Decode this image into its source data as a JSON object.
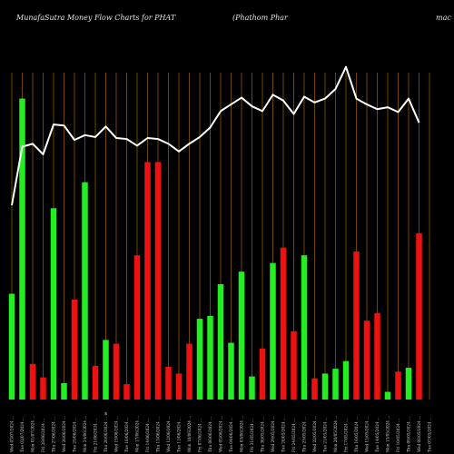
{
  "header": {
    "title_left": "MunafaSutra  Money Flow  Charts for PHAT",
    "title_right": "(Phathom Phar",
    "title_right_tail": "mac"
  },
  "chart_data": {
    "type": "bar",
    "note_symbol": "$",
    "colors": {
      "up": "#22ee22",
      "down": "#ee1111",
      "line": "#ffffff",
      "grid": "#8a5a00",
      "background": "#000000"
    },
    "categories": [
      "Wed 03/07/2024 ...",
      "Tue 02/07/2024 ...",
      "Mon 01/07/2024 ...",
      "Fri 28/06/2024 ...",
      "Thu 27/06/2024 ...",
      "Wed 26/06/2024 ...",
      "Tue 25/06/2024 ...",
      "Mon 24/06/2024 ...",
      "Fri 21/06/2024 ...",
      "Thu 20/06/2024 ...",
      "Wed 19/06/2024 ...",
      "Tue 18/06/2024 ...",
      "Mon 17/06/2024 ...",
      "Fri 14/06/2024 ...",
      "Thu 13/06/2024 ...",
      "Wed 12/06/2024 ...",
      "Tue 11/06/2024 ...",
      "Mon 10/06/2024 ...",
      "Fri 07/06/2024 ...",
      "Thu 06/06/2024 ...",
      "Wed 05/06/2024 ...",
      "Tue 04/06/2024 ...",
      "Mon 03/06/2024 ...",
      "Fri 31/05/2024 ...",
      "Thu 30/05/2024 ...",
      "Wed 29/05/2024 ...",
      "Tue 28/05/2024 ...",
      "Fri 24/05/2024 ...",
      "Thu 23/05/2024 ...",
      "Wed 22/05/2024 ...",
      "Tue 21/05/2024 ...",
      "Mon 20/05/2024 ...",
      "Fri 17/05/2024 ...",
      "Thu 16/05/2024 ...",
      "Wed 15/05/2024 ...",
      "Tue 14/05/2024 ...",
      "Mon 13/05/2024 ...",
      "Fri 10/05/2024 ...",
      "Thu 09/05/2024 ...",
      "Wed 08/05/2024 ...",
      "Tue 07/05/2024 ..."
    ],
    "values": [
      110,
      313,
      37,
      23,
      199,
      17,
      104,
      226,
      35,
      62,
      58,
      16,
      150,
      247,
      247,
      34,
      27,
      58,
      84,
      87,
      120,
      59,
      133,
      24,
      53,
      142,
      158,
      71,
      150,
      22,
      27,
      32,
      40,
      154,
      82,
      90,
      8,
      29,
      33,
      173,
      0
    ],
    "direction": [
      "up",
      "up",
      "down",
      "down",
      "up",
      "up",
      "down",
      "up",
      "down",
      "up",
      "down",
      "down",
      "down",
      "down",
      "down",
      "down",
      "down",
      "down",
      "up",
      "up",
      "up",
      "up",
      "up",
      "up",
      "down",
      "up",
      "down",
      "down",
      "up",
      "down",
      "up",
      "up",
      "up",
      "down",
      "down",
      "down",
      "up",
      "down",
      "up",
      "down",
      "down"
    ],
    "line_values": [
      202,
      263,
      266,
      255,
      286,
      285,
      270,
      275,
      273,
      284,
      272,
      271,
      264,
      272,
      271,
      266,
      258,
      266,
      273,
      283,
      300,
      307,
      314,
      305,
      300,
      317,
      311,
      297,
      315,
      309,
      313,
      323,
      346,
      313,
      307,
      302,
      304,
      299,
      313,
      288,
      0
    ],
    "ylim": [
      0,
      340
    ]
  }
}
